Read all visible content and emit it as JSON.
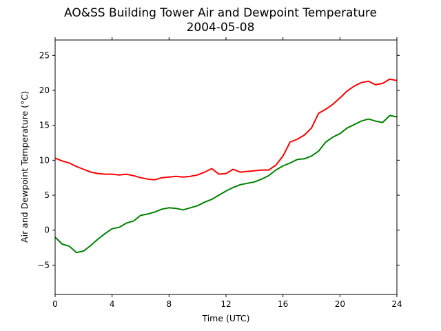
{
  "chart_data": {
    "type": "line",
    "title": "AO&SS Building Tower Air and Dewpoint Temperature",
    "subtitle": "2004-05-08",
    "xlabel": "Time (UTC)",
    "ylabel": "Air and Dewpoint Temperature (°C)",
    "xlim": [
      0,
      24
    ],
    "ylim": [
      -9.2,
      27.2
    ],
    "xticks": [
      0,
      4,
      8,
      12,
      16,
      20,
      24
    ],
    "yticks": [
      -5,
      0,
      5,
      10,
      15,
      20,
      25
    ],
    "grid": false,
    "legend": "none",
    "series": [
      {
        "color": "#ff0000",
        "x": [
          0,
          0.5,
          1,
          1.5,
          2,
          2.5,
          3,
          3.5,
          4,
          4.5,
          5,
          5.5,
          6,
          6.5,
          7,
          7.5,
          8,
          8.5,
          9,
          9.5,
          10,
          10.5,
          11,
          11.5,
          12,
          12.5,
          13,
          13.5,
          14,
          14.5,
          15,
          15.5,
          16,
          16.5,
          17,
          17.5,
          18,
          18.5,
          19,
          19.5,
          20,
          20.5,
          21,
          21.5,
          22,
          22.5,
          23,
          23.5,
          24
        ],
        "y": [
          10.3,
          9.9,
          9.6,
          9.1,
          8.7,
          8.3,
          8.1,
          8.0,
          8.0,
          7.9,
          8.0,
          7.8,
          7.5,
          7.3,
          7.2,
          7.5,
          7.6,
          7.7,
          7.6,
          7.7,
          7.9,
          8.3,
          8.8,
          8.0,
          8.1,
          8.7,
          8.3,
          8.4,
          8.5,
          8.6,
          8.6,
          9.3,
          10.6,
          12.6,
          13.0,
          13.6,
          14.6,
          16.7,
          17.3,
          18.0,
          18.9,
          19.9,
          20.6,
          21.1,
          21.3,
          20.8,
          21.0,
          21.6,
          21.4
        ]
      },
      {
        "color": "#008000",
        "x": [
          0,
          0.5,
          1,
          1.5,
          2,
          2.5,
          3,
          3.5,
          4,
          4.5,
          5,
          5.5,
          6,
          6.5,
          7,
          7.5,
          8,
          8.5,
          9,
          9.5,
          10,
          10.5,
          11,
          11.5,
          12,
          12.5,
          13,
          13.5,
          14,
          14.5,
          15,
          15.5,
          16,
          16.5,
          17,
          17.5,
          18,
          18.5,
          19,
          19.5,
          20,
          20.5,
          21,
          21.5,
          22,
          22.5,
          23,
          23.5,
          24
        ],
        "y": [
          -1.0,
          -2.0,
          -2.3,
          -3.2,
          -3.0,
          -2.2,
          -1.3,
          -0.5,
          0.2,
          0.4,
          1.0,
          1.3,
          2.1,
          2.3,
          2.6,
          3.0,
          3.2,
          3.1,
          2.9,
          3.2,
          3.5,
          4.0,
          4.4,
          5.0,
          5.6,
          6.1,
          6.5,
          6.7,
          6.9,
          7.3,
          7.8,
          8.6,
          9.2,
          9.6,
          10.1,
          10.2,
          10.6,
          11.3,
          12.6,
          13.3,
          13.8,
          14.6,
          15.1,
          15.6,
          15.9,
          15.6,
          15.4,
          16.4,
          16.2
        ]
      }
    ]
  }
}
